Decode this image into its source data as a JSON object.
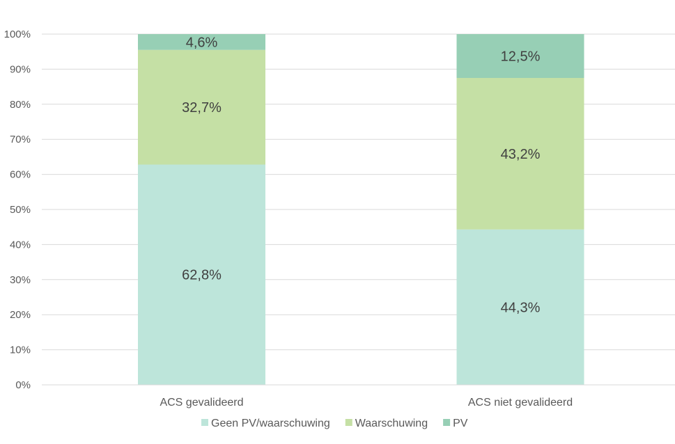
{
  "chart_data": {
    "type": "bar",
    "stacked": true,
    "percent_stacked": true,
    "categories": [
      "ACS gevalideerd",
      "ACS niet gevalideerd"
    ],
    "series": [
      {
        "name": "Geen PV/waarschuwing",
        "values": [
          62.8,
          44.3
        ],
        "labels": [
          "62,8%",
          "44,3%"
        ],
        "color": "#bde5da"
      },
      {
        "name": "Waarschuwing",
        "values": [
          32.7,
          43.2
        ],
        "labels": [
          "32,7%",
          "43,2%"
        ],
        "color": "#c5e0a5"
      },
      {
        "name": "PV",
        "values": [
          4.6,
          12.5
        ],
        "labels": [
          "4,6%",
          "12,5%"
        ],
        "color": "#97cfb5"
      }
    ],
    "yticks": [
      "0%",
      "10%",
      "20%",
      "30%",
      "40%",
      "50%",
      "60%",
      "70%",
      "80%",
      "90%",
      "100%"
    ],
    "ylim": [
      0,
      100
    ],
    "grid": true,
    "legend_position": "bottom"
  }
}
